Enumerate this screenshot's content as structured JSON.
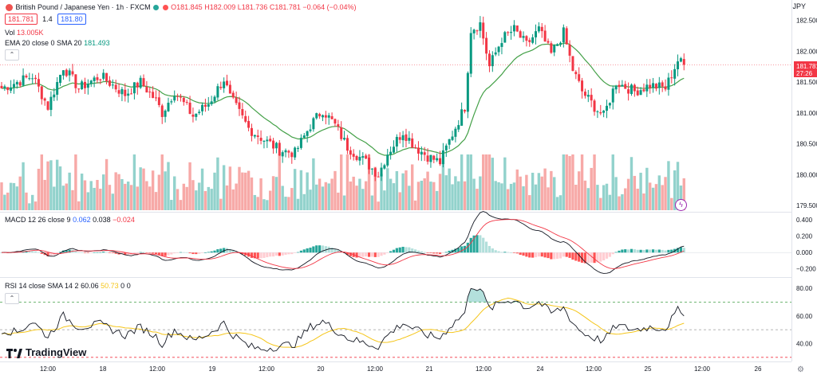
{
  "header": {
    "symbol": "British Pound / Japanese Yen · 1h · FXCM",
    "ohlc": {
      "open": "O181.845",
      "high": "H182.009",
      "low": "L181.736",
      "close": "C181.781",
      "change": "−0.064 (−0.04%)"
    },
    "bid": "181.781",
    "spread": "1.4",
    "ask": "181.80",
    "currency": "JPY"
  },
  "indicators": {
    "volume": {
      "label": "Vol",
      "value": "13.005K"
    },
    "ema": {
      "label": "EMA 20 close 0 SMA 20",
      "value": "181.493",
      "color": "#43a047"
    },
    "macd": {
      "label": "MACD 12 26 close 9",
      "v1": "0.062",
      "v2": "0.038",
      "v3": "−0.024"
    },
    "rsi": {
      "label": "RSI 14 close SMA 14 2",
      "v1": "60.06",
      "v2": "50.73",
      "v3": "0",
      "v4": "0"
    }
  },
  "price_label": {
    "price": "181.781",
    "countdown": "27:26"
  },
  "brand": "TradingView",
  "chart_data": {
    "type": "candlestick",
    "symbol": "GBPJPY",
    "timeframe": "1h",
    "price_axis": {
      "range": [
        179.4,
        182.7
      ],
      "ticks": [
        "182.500",
        "182.000",
        "181.500",
        "181.000",
        "180.500",
        "180.000",
        "179.500"
      ]
    },
    "macd_axis": {
      "range": [
        -0.3,
        0.48
      ],
      "ticks": [
        "0.400",
        "0.200",
        "0.000",
        "−0.200"
      ]
    },
    "rsi_axis": {
      "range": [
        27,
        87
      ],
      "ticks": [
        "80.00",
        "60.00",
        "40.00"
      ],
      "levels": [
        70,
        50,
        30
      ]
    },
    "x_ticks": [
      "12:00",
      "18",
      "12:00",
      "19",
      "12:00",
      "20",
      "12:00",
      "21",
      "12:00",
      "24",
      "12:00",
      "25",
      "12:00",
      "26"
    ],
    "close_anchors": [
      [
        0,
        181.4
      ],
      [
        5,
        181.5
      ],
      [
        10,
        181.6
      ],
      [
        15,
        181.1
      ],
      [
        20,
        181.75
      ],
      [
        25,
        181.4
      ],
      [
        32,
        181.6
      ],
      [
        40,
        181.3
      ],
      [
        45,
        181.5
      ],
      [
        50,
        181.2
      ],
      [
        52,
        181.0
      ],
      [
        56,
        181.35
      ],
      [
        62,
        180.95
      ],
      [
        67,
        181.15
      ],
      [
        72,
        181.55
      ],
      [
        74,
        181.25
      ],
      [
        80,
        180.75
      ],
      [
        84,
        180.6
      ],
      [
        90,
        180.4
      ],
      [
        95,
        180.35
      ],
      [
        100,
        180.8
      ],
      [
        104,
        181.05
      ],
      [
        108,
        180.8
      ],
      [
        112,
        180.45
      ],
      [
        118,
        180.2
      ],
      [
        122,
        180.0
      ],
      [
        125,
        180.35
      ],
      [
        130,
        180.7
      ],
      [
        134,
        180.45
      ],
      [
        138,
        180.3
      ],
      [
        142,
        180.2
      ],
      [
        145,
        180.55
      ],
      [
        150,
        181.1
      ],
      [
        152,
        182.35
      ],
      [
        155,
        182.45
      ],
      [
        158,
        181.75
      ],
      [
        162,
        182.2
      ],
      [
        166,
        182.35
      ],
      [
        170,
        182.1
      ],
      [
        174,
        182.35
      ],
      [
        178,
        181.95
      ],
      [
        182,
        182.3
      ],
      [
        185,
        181.7
      ],
      [
        188,
        181.35
      ],
      [
        192,
        181.1
      ],
      [
        195,
        180.95
      ],
      [
        199,
        181.5
      ],
      [
        205,
        181.35
      ],
      [
        210,
        181.45
      ],
      [
        215,
        181.4
      ],
      [
        219,
        181.85
      ],
      [
        221,
        181.78
      ]
    ],
    "rsi_anchors": [
      [
        0,
        50
      ],
      [
        5,
        48
      ],
      [
        10,
        56
      ],
      [
        15,
        45
      ],
      [
        20,
        60
      ],
      [
        25,
        52
      ],
      [
        32,
        54
      ],
      [
        40,
        46
      ],
      [
        45,
        52
      ],
      [
        50,
        45
      ],
      [
        52,
        40
      ],
      [
        56,
        50
      ],
      [
        62,
        42
      ],
      [
        67,
        47
      ],
      [
        72,
        55
      ],
      [
        74,
        48
      ],
      [
        80,
        38
      ],
      [
        84,
        36
      ],
      [
        90,
        38
      ],
      [
        95,
        40
      ],
      [
        100,
        52
      ],
      [
        104,
        56
      ],
      [
        108,
        50
      ],
      [
        112,
        44
      ],
      [
        118,
        40
      ],
      [
        122,
        38
      ],
      [
        125,
        46
      ],
      [
        130,
        55
      ],
      [
        134,
        50
      ],
      [
        138,
        46
      ],
      [
        142,
        44
      ],
      [
        145,
        52
      ],
      [
        150,
        62
      ],
      [
        152,
        82
      ],
      [
        155,
        80
      ],
      [
        158,
        65
      ],
      [
        162,
        70
      ],
      [
        166,
        72
      ],
      [
        170,
        66
      ],
      [
        174,
        70
      ],
      [
        178,
        62
      ],
      [
        182,
        66
      ],
      [
        185,
        55
      ],
      [
        188,
        48
      ],
      [
        192,
        44
      ],
      [
        195,
        42
      ],
      [
        199,
        53
      ],
      [
        205,
        50
      ],
      [
        210,
        52
      ],
      [
        215,
        51
      ],
      [
        219,
        64
      ],
      [
        221,
        60
      ]
    ]
  }
}
